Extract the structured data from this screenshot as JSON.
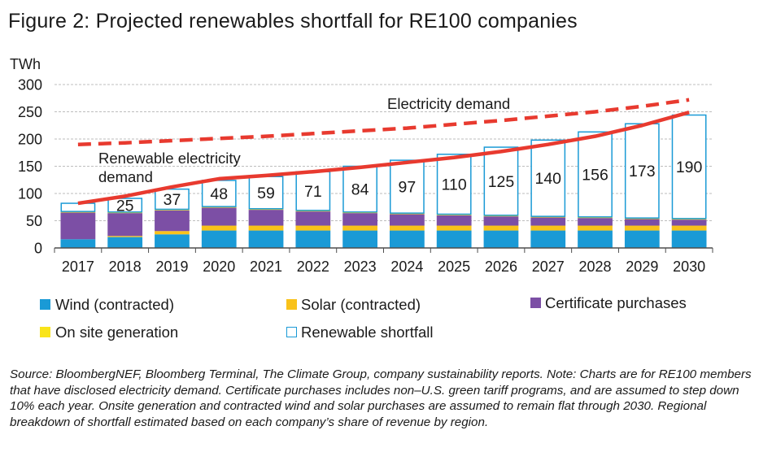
{
  "title": "Figure 2: Projected renewables shortfall for RE100 companies",
  "chart_data": {
    "type": "bar",
    "stacked": true,
    "ylabel": "TWh",
    "ylim": [
      0,
      300
    ],
    "yticks": [
      0,
      50,
      100,
      150,
      200,
      250,
      300
    ],
    "categories": [
      "2017",
      "2018",
      "2019",
      "2020",
      "2021",
      "2022",
      "2023",
      "2024",
      "2025",
      "2026",
      "2027",
      "2028",
      "2029",
      "2030"
    ],
    "series": [
      {
        "name": "Wind (contracted)",
        "color": "#1a9ad6",
        "style": "fill",
        "values": [
          16,
          20,
          25,
          32,
          32,
          32,
          32,
          32,
          32,
          32,
          32,
          32,
          32,
          32
        ]
      },
      {
        "name": "Solar (contracted)",
        "color": "#f9c21a",
        "style": "fill",
        "values": [
          0,
          2,
          6,
          9,
          9,
          9,
          9,
          9,
          9,
          9,
          9,
          9,
          9,
          9
        ]
      },
      {
        "name": "Certificate purchases",
        "color": "#7c4fa5",
        "style": "fill",
        "values": [
          49,
          42,
          38,
          33,
          29,
          26,
          23,
          21,
          19,
          17,
          15,
          14,
          12,
          11
        ]
      },
      {
        "name": "On site generation",
        "color": "#f9e41a",
        "style": "fill",
        "values": [
          2,
          2,
          2,
          2,
          2,
          2,
          2,
          2,
          2,
          2,
          2,
          2,
          2,
          2
        ]
      },
      {
        "name": "Renewable shortfall",
        "color": "#1a9ad6",
        "style": "outline",
        "values": [
          15,
          25,
          37,
          48,
          59,
          71,
          84,
          97,
          110,
          125,
          140,
          156,
          173,
          190
        ]
      }
    ],
    "data_labels": [
      "",
      "25",
      "37",
      "48",
      "59",
      "71",
      "84",
      "97",
      "110",
      "125",
      "140",
      "156",
      "173",
      "190"
    ],
    "lines": [
      {
        "name": "Electricity demand",
        "color": "#e83a2f",
        "dashed": true,
        "values": [
          190,
          193,
          197,
          201,
          205,
          210,
          215,
          220,
          227,
          234,
          242,
          250,
          260,
          272
        ]
      },
      {
        "name": "Renewable electricity demand",
        "color": "#e83a2f",
        "dashed": false,
        "values": [
          82,
          95,
          112,
          127,
          133,
          140,
          148,
          157,
          166,
          177,
          190,
          205,
          225,
          249
        ]
      }
    ],
    "annotations": [
      {
        "text": "Electricity demand"
      },
      {
        "text": "Renewable electricity"
      },
      {
        "text": "demand"
      }
    ]
  },
  "legend": [
    {
      "label": "Wind (contracted)",
      "color": "#1a9ad6",
      "outline": false
    },
    {
      "label": "Solar (contracted)",
      "color": "#f9c21a",
      "outline": false
    },
    {
      "label": "Certificate purchases",
      "color": "#7c4fa5",
      "outline": false
    },
    {
      "label": "On site generation",
      "color": "#f9e41a",
      "outline": false
    },
    {
      "label": "Renewable shortfall",
      "color": "#1a9ad6",
      "outline": true
    }
  ],
  "source": "Source: BloombergNEF, Bloomberg Terminal, The Climate Group, company sustainability reports. Note: Charts are for RE100 members that have disclosed electricity demand. Certificate purchases includes non–U.S. green tariff programs, and are assumed to step down 10% each year. Onsite generation and contracted wind and solar purchases are assumed to remain flat through 2030. Regional breakdown of shortfall estimated based on each company’s share of revenue by region."
}
